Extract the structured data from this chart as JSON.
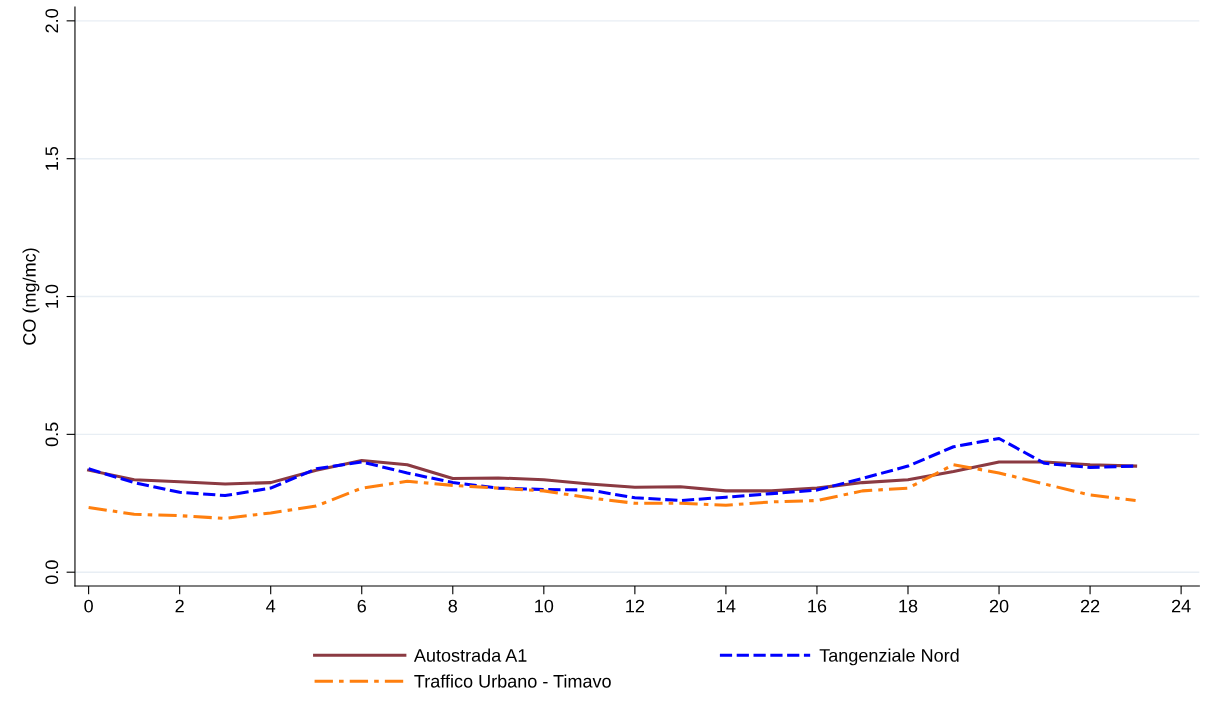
{
  "chart_data": {
    "type": "line",
    "ylabel": "CO (mg/mc)",
    "x": [
      0,
      1,
      2,
      3,
      4,
      5,
      6,
      7,
      8,
      9,
      10,
      11,
      12,
      13,
      14,
      15,
      16,
      17,
      18,
      19,
      20,
      21,
      22,
      23
    ],
    "series": [
      {
        "name": "Autostrada A1",
        "color": "#8b3a42",
        "line_style": "solid",
        "values": [
          0.37,
          0.335,
          0.328,
          0.32,
          0.325,
          0.37,
          0.405,
          0.39,
          0.34,
          0.342,
          0.335,
          0.32,
          0.308,
          0.31,
          0.295,
          0.295,
          0.305,
          0.325,
          0.335,
          0.365,
          0.4,
          0.4,
          0.39,
          0.385
        ]
      },
      {
        "name": "Tangenziale Nord",
        "color": "#0000ff",
        "line_style": "dashed",
        "values": [
          0.375,
          0.325,
          0.29,
          0.278,
          0.305,
          0.375,
          0.4,
          0.36,
          0.325,
          0.305,
          0.3,
          0.298,
          0.27,
          0.26,
          0.272,
          0.285,
          0.298,
          0.34,
          0.385,
          0.455,
          0.485,
          0.395,
          0.38,
          0.385
        ]
      },
      {
        "name": "Traffico Urbano - Timavo",
        "color": "#ff7f0e",
        "line_style": "dashdot",
        "values": [
          0.235,
          0.21,
          0.205,
          0.195,
          0.215,
          0.24,
          0.305,
          0.33,
          0.315,
          0.305,
          0.295,
          0.27,
          0.25,
          0.25,
          0.243,
          0.255,
          0.26,
          0.295,
          0.305,
          0.39,
          0.36,
          0.32,
          0.28,
          0.26
        ]
      }
    ],
    "xlim": [
      -0.3,
      24.4
    ],
    "xticks": [
      0,
      2,
      4,
      6,
      8,
      10,
      12,
      14,
      16,
      18,
      20,
      22,
      24
    ],
    "ylim": [
      -0.05,
      2.05
    ],
    "yticks": [
      {
        "value": 0,
        "label": "0.0"
      },
      {
        "value": 0.5,
        "label": "0.5"
      },
      {
        "value": 1.0,
        "label": "1.0"
      },
      {
        "value": 1.5,
        "label": "1.5"
      },
      {
        "value": 2.0,
        "label": "2.0"
      }
    ],
    "grid": "y",
    "legend": "bottom",
    "marker": "none"
  }
}
